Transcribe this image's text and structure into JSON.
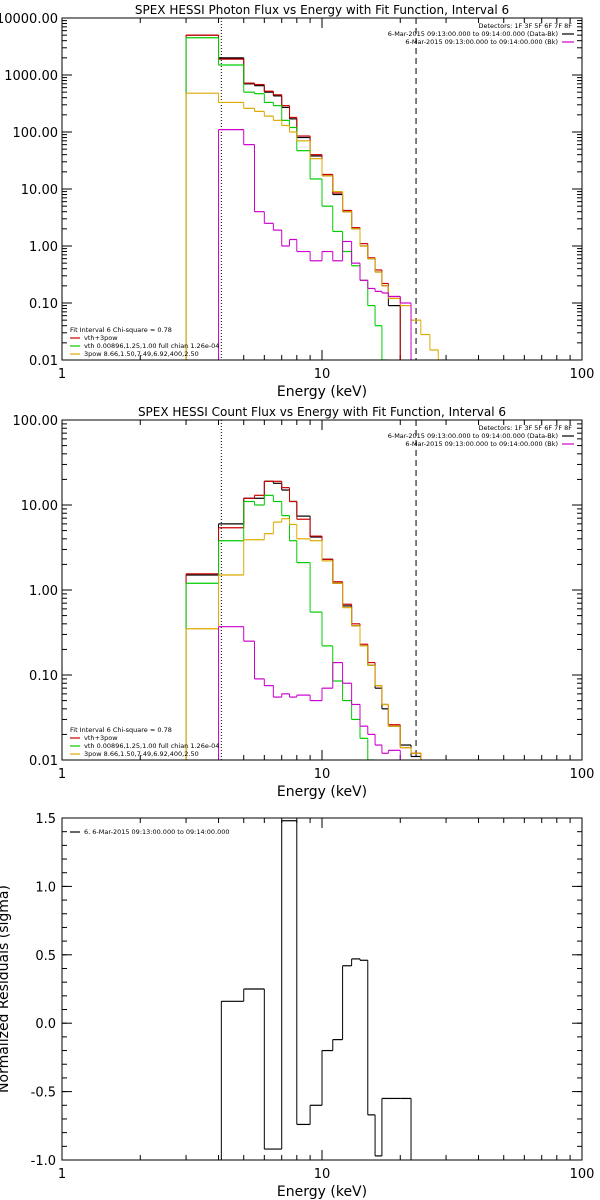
{
  "chart_data": [
    {
      "type": "line",
      "title": "SPEX HESSI Photon Flux vs Energy with Fit Function, Interval 6",
      "xlabel": "Energy (keV)",
      "ylabel": "",
      "xscale": "log",
      "yscale": "log",
      "xlim": [
        1,
        100
      ],
      "ylim": [
        0.01,
        10000
      ],
      "xtick_labels": [
        "1",
        "10",
        "100"
      ],
      "ytick_labels": [
        "0.01",
        "0.10",
        "1.00",
        "10.00",
        "100.00",
        "1000.00",
        "10000.00"
      ],
      "legend_right": {
        "header": "Detectors: 1F 3F 5F 6F 7F 8F",
        "lines": [
          {
            "text": "6-Mar-2015 09:13:00.000 to 09:14:00.000 (Data-Bk)",
            "color": "#000000"
          },
          {
            "text": "6-Mar-2015 09:13:00.000 to 09:14:00.000 (Bk)",
            "color": "#cc00cc"
          }
        ]
      },
      "legend_left": {
        "header": "Fit Interval 6   Chi-square = 0.78",
        "lines": [
          {
            "text": "vth+3pow",
            "color": "#cc0000"
          },
          {
            "text": "vth 0.00896,1.25,1.00  full chian 1.26e-04",
            "color": "#00cc00"
          },
          {
            "text": "3pow 8.66,1.50,7.49,6.92,400,2.50",
            "color": "#ddaa00"
          }
        ]
      },
      "vlines": [
        {
          "x": 4.1,
          "style": "dotted",
          "color": "#000000"
        },
        {
          "x": 23,
          "style": "dashed",
          "color": "#000000"
        }
      ],
      "edges": [
        3,
        4,
        5,
        5.5,
        6,
        6.5,
        7,
        7.5,
        8,
        9,
        10,
        11,
        12,
        13,
        14,
        15,
        16,
        17,
        18,
        20,
        22,
        24,
        26,
        28,
        30
      ],
      "series": [
        {
          "name": "Data-Bk",
          "color": "#000000",
          "values": [
            5000,
            2000,
            700,
            650,
            500,
            430,
            270,
            170,
            80,
            38,
            17,
            8,
            4,
            2,
            1,
            0.6,
            0.35,
            0.2,
            0.09,
            null,
            null,
            null,
            null,
            null
          ]
        },
        {
          "name": "vth+3pow",
          "color": "#cc0000",
          "values": [
            5000,
            1900,
            720,
            680,
            520,
            450,
            290,
            180,
            85,
            40,
            18,
            8.5,
            4.2,
            2.1,
            1.1,
            0.62,
            0.38,
            0.22,
            0.13,
            null,
            null,
            null,
            null,
            null
          ]
        },
        {
          "name": "vth",
          "color": "#00cc00",
          "values": [
            4500,
            1500,
            500,
            470,
            330,
            290,
            160,
            120,
            47,
            15,
            5,
            1.8,
            0.8,
            0.45,
            0.25,
            0.09,
            0.04,
            0.01,
            null,
            null,
            null,
            null,
            null,
            null
          ]
        },
        {
          "name": "3pow",
          "color": "#ddaa00",
          "values": [
            480,
            330,
            260,
            230,
            190,
            160,
            130,
            100,
            70,
            34,
            17,
            9,
            4,
            2,
            1,
            0.6,
            0.35,
            0.2,
            0.12,
            0.09,
            0.05,
            0.028,
            0.015,
            0.01
          ]
        },
        {
          "name": "Bk",
          "color": "#cc00cc",
          "values": [
            null,
            110,
            60,
            4,
            2.5,
            1.9,
            1.0,
            1.3,
            0.8,
            0.55,
            0.8,
            0.55,
            1.2,
            0.5,
            0.25,
            0.18,
            0.16,
            0.15,
            0.13,
            0.1,
            null,
            null,
            null,
            null
          ]
        }
      ]
    },
    {
      "type": "line",
      "title": "SPEX HESSI Count Flux vs Energy with Fit Function, Interval 6",
      "xlabel": "Energy (keV)",
      "ylabel": "",
      "xscale": "log",
      "yscale": "log",
      "xlim": [
        1,
        100
      ],
      "ylim": [
        0.01,
        100
      ],
      "xtick_labels": [
        "1",
        "10",
        "100"
      ],
      "ytick_labels": [
        "0.01",
        "0.10",
        "1.00",
        "10.00",
        "100.00"
      ],
      "legend_right": {
        "header": "Detectors: 1F 3F 5F 6F 7F 8F",
        "lines": [
          {
            "text": "6-Mar-2015 09:13:00.000 to 09:14:00.000 (Data-Bk)",
            "color": "#000000"
          },
          {
            "text": "6-Mar-2015 09:13:00.000 to 09:14:00.000 (Bk)",
            "color": "#cc00cc"
          }
        ]
      },
      "legend_left": {
        "header": "Fit Interval 6   Chi-square = 0.78",
        "lines": [
          {
            "text": "vth+3pow",
            "color": "#cc0000"
          },
          {
            "text": "vth 0.00896,1.25,1.00  full chian 1.26e-04",
            "color": "#00cc00"
          },
          {
            "text": "3pow 8.66,1.50,7.49,6.92,400,2.50",
            "color": "#ddaa00"
          }
        ]
      },
      "vlines": [
        {
          "x": 4.1,
          "style": "dotted",
          "color": "#000000"
        },
        {
          "x": 23,
          "style": "dashed",
          "color": "#000000"
        }
      ],
      "edges": [
        3,
        4,
        5,
        5.5,
        6,
        6.5,
        7,
        7.5,
        8,
        9,
        10,
        11,
        12,
        13,
        14,
        15,
        16,
        17,
        18,
        20,
        22,
        24
      ],
      "series": [
        {
          "name": "Data-Bk",
          "color": "#000000",
          "values": [
            1.5,
            6,
            12,
            12,
            19,
            18,
            15,
            11,
            7.4,
            4.2,
            2.3,
            1.2,
            0.65,
            0.38,
            0.22,
            0.13,
            0.07,
            0.04,
            0.025,
            0.015,
            0.011
          ]
        },
        {
          "name": "vth+3pow",
          "color": "#cc0000",
          "values": [
            1.55,
            5.4,
            12,
            13,
            19,
            19,
            16,
            11,
            6.8,
            4.3,
            2.3,
            1.25,
            0.68,
            0.4,
            0.23,
            0.14,
            0.075,
            0.045,
            0.026,
            0.014,
            0.012
          ]
        },
        {
          "name": "vth",
          "color": "#00cc00",
          "values": [
            1.2,
            3.8,
            11,
            10,
            13,
            11,
            7.5,
            3.8,
            2.1,
            0.55,
            0.22,
            0.085,
            0.05,
            0.03,
            0.018,
            0.01,
            null,
            null,
            null,
            null,
            null
          ]
        },
        {
          "name": "3pow",
          "color": "#ddaa00",
          "values": [
            0.35,
            1.5,
            3.9,
            3.9,
            4.6,
            6.3,
            6.9,
            5.9,
            4,
            3.8,
            2.2,
            1.2,
            0.62,
            0.38,
            0.22,
            0.13,
            0.075,
            0.045,
            0.025,
            0.014,
            0.012
          ]
        },
        {
          "name": "Bk",
          "color": "#cc00cc",
          "values": [
            null,
            0.37,
            0.25,
            0.09,
            0.075,
            0.055,
            0.06,
            0.055,
            0.058,
            0.05,
            0.07,
            0.14,
            0.08,
            0.045,
            0.025,
            0.02,
            0.015,
            0.012,
            0.013,
            null,
            null
          ]
        }
      ]
    },
    {
      "type": "line",
      "title": "",
      "xlabel": "Energy (keV)",
      "ylabel": "Normalized Residuals (sigma)",
      "xscale": "log",
      "yscale": "linear",
      "xlim": [
        1,
        100
      ],
      "ylim": [
        -1.0,
        1.5
      ],
      "xtick_labels": [
        "1",
        "10",
        "100"
      ],
      "ytick_labels": [
        "-1.0",
        "-0.5",
        "0.0",
        "0.5",
        "1.0",
        "1.5"
      ],
      "legend_right": null,
      "legend_left": {
        "header": "",
        "lines": [
          {
            "text": "6.  6-Mar-2015 09:13:00.000 to 09:14:00.000",
            "color": "#000000"
          }
        ]
      },
      "vlines": [],
      "edges": [
        4.1,
        5,
        6,
        7,
        8,
        9,
        10,
        11,
        12,
        13,
        14,
        15,
        16,
        17,
        18,
        20,
        22
      ],
      "series": [
        {
          "name": "",
          "color": "#000000",
          "values": [
            0.16,
            0.25,
            -0.92,
            1.48,
            -0.74,
            -0.6,
            -0.2,
            -0.12,
            0.42,
            0.47,
            0.46,
            -0.67,
            -0.97,
            -0.55,
            -0.55,
            -0.55
          ]
        }
      ]
    }
  ]
}
